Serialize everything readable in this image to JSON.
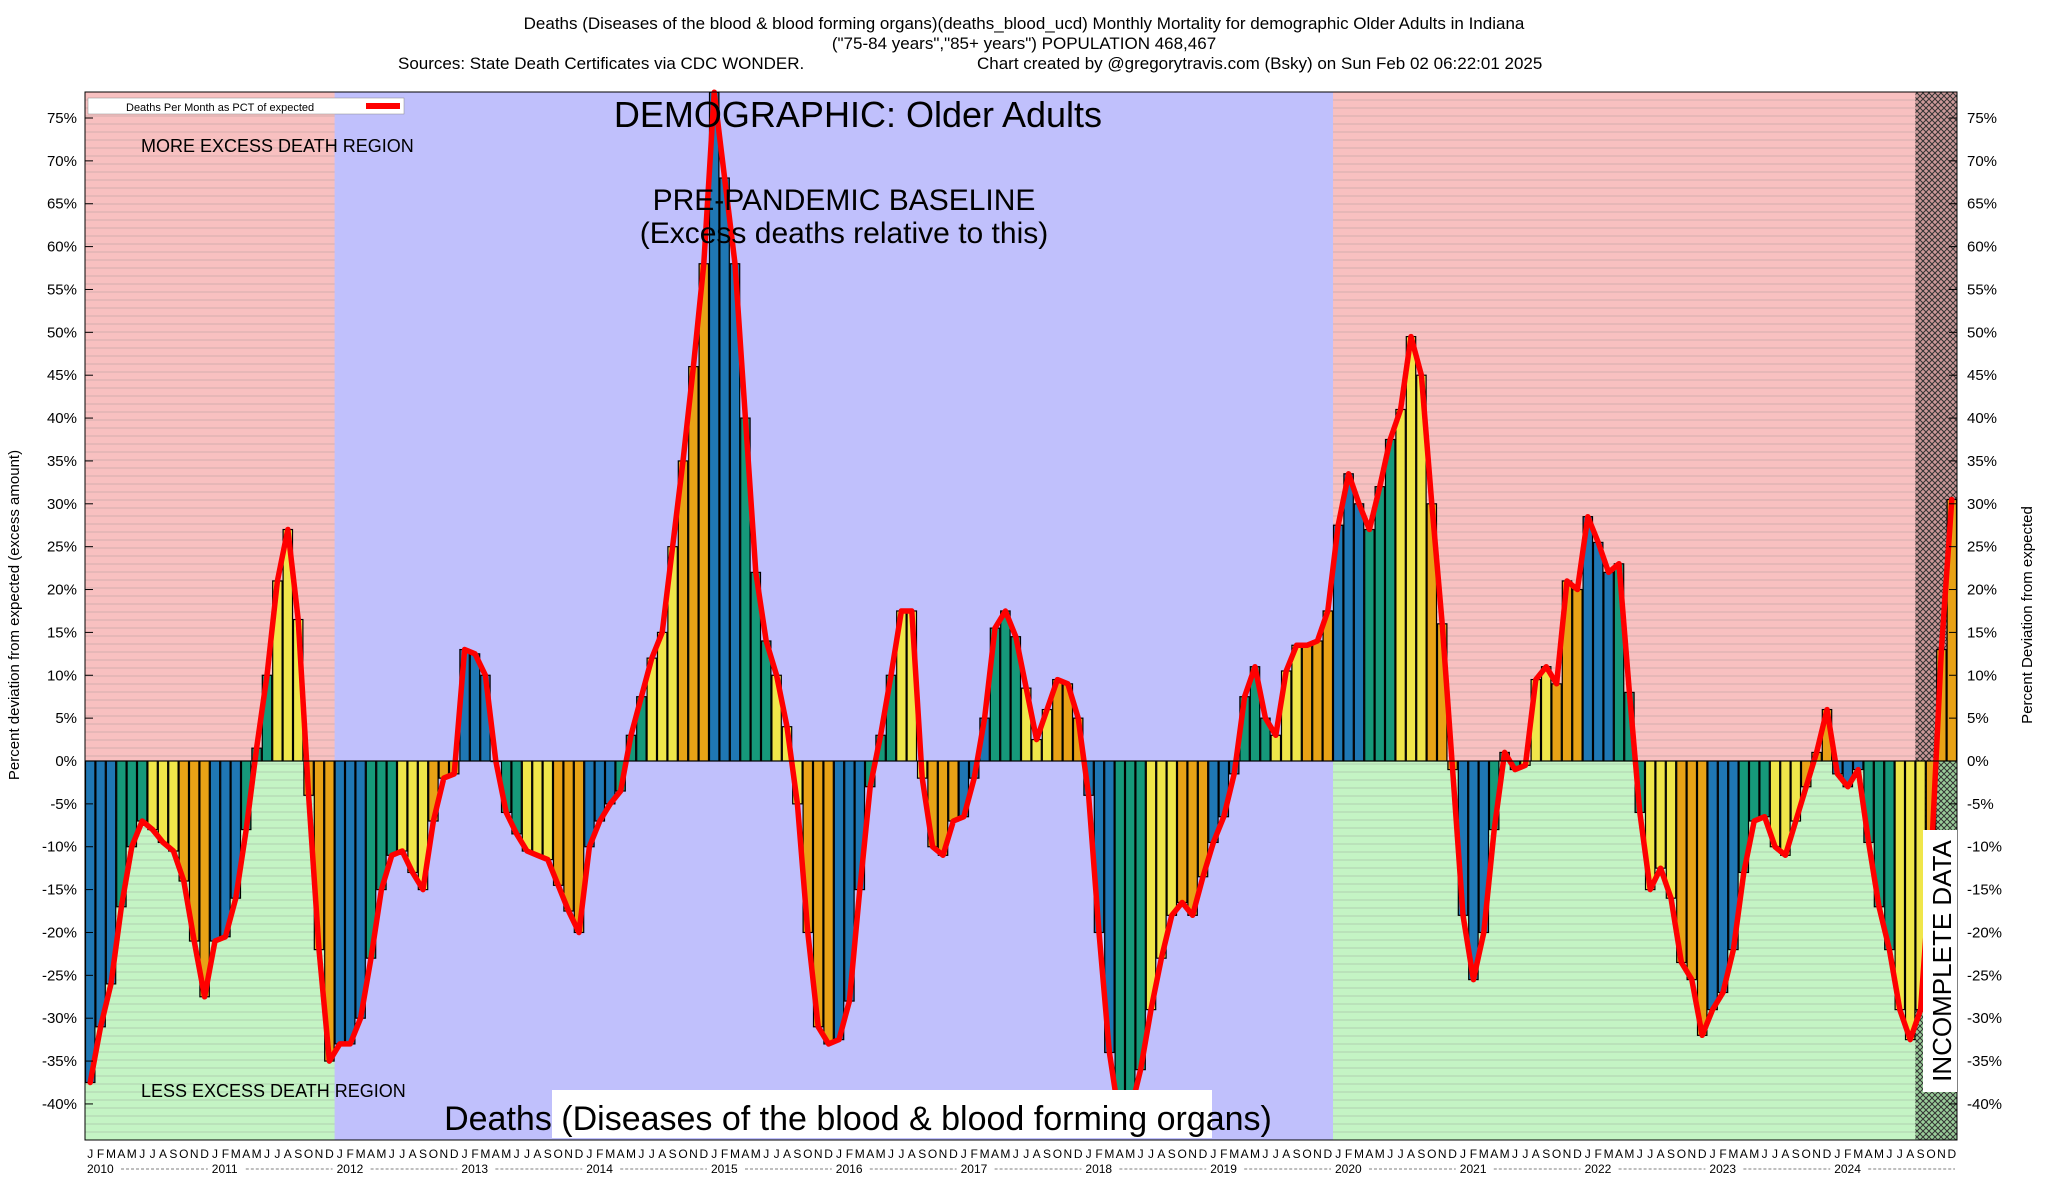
{
  "header": {
    "line1": "Deaths (Diseases of the blood & blood forming organs)(deaths_blood_ucd) Monthly Mortality for demographic Older Adults in Indiana",
    "line2": "(\"75-84 years\",\"85+ years\") POPULATION 468,467",
    "line3_left": "Sources: State Death Certificates via CDC WONDER.",
    "line3_right": "Chart created by @gregorytravis.com (Bsky) on Sun Feb 02 06:22:01 2025"
  },
  "chart_data": {
    "type": "bar",
    "title": "DEMOGRAPHIC: Older Adults",
    "subtitle_line1": "PRE-PANDEMIC BASELINE",
    "subtitle_line2": "(Excess deaths relative to this)",
    "bottom_label": "Deaths (Diseases of the blood & blood forming organs)",
    "ylabel_left": "Percent deviation from expected (excess amount)",
    "ylabel_right": "Percent Deviation from expected",
    "legend_label": "Deaths Per Month as PCT of expected",
    "region_upper_label": "MORE EXCESS DEATH REGION",
    "region_lower_label": "LESS EXCESS DEATH REGION",
    "incomplete_label": "INCOMPLETE DATA",
    "ylim": [
      -40,
      75
    ],
    "ytick_labels": [
      "75%",
      "70%",
      "65%",
      "60%",
      "55%",
      "50%",
      "45%",
      "40%",
      "35%",
      "30%",
      "25%",
      "20%",
      "15%",
      "10%",
      "5%",
      "0%",
      "-5%",
      "-10%",
      "-15%",
      "-20%",
      "-25%",
      "-30%",
      "-35%",
      "-40%"
    ],
    "month_letters": [
      "J",
      "F",
      "M",
      "A",
      "M",
      "J",
      "J",
      "A",
      "S",
      "O",
      "N",
      "D"
    ],
    "years": [
      "2010",
      "2011",
      "2012",
      "2013",
      "2014",
      "2015",
      "2016",
      "2017",
      "2018",
      "2019",
      "2020",
      "2021",
      "2022",
      "2023",
      "2024"
    ],
    "year_start": 2010,
    "baseline_start_year": 2012,
    "baseline_end_year": 2019,
    "incomplete_months": 4,
    "values": [
      -37.5,
      -31,
      -26,
      -17,
      -10,
      -7,
      -8,
      -9.5,
      -10.5,
      -14,
      -21,
      -27.5,
      -21,
      -20.5,
      -16,
      -8,
      1.5,
      10,
      21,
      27,
      16.5,
      -4,
      -22,
      -35,
      -33,
      -33,
      -30,
      -23,
      -15,
      -11,
      -10.5,
      -13,
      -15,
      -7,
      -2,
      -1.5,
      13,
      12.5,
      10,
      0,
      -6,
      -8.5,
      -10.5,
      -11,
      -11.5,
      -14.5,
      -17.5,
      -20,
      -10,
      -7,
      -5,
      -3.5,
      3,
      7.5,
      12,
      15,
      25,
      35,
      46,
      58,
      78,
      68,
      58,
      40,
      22,
      14,
      10,
      4,
      -5,
      -20,
      -31,
      -33,
      -32.5,
      -28,
      -15,
      -3,
      3,
      10,
      17.5,
      17.5,
      -2,
      -10,
      -11,
      -7,
      -6.5,
      -2,
      5,
      15.5,
      17.5,
      14.5,
      8.5,
      2.5,
      6,
      9.5,
      9,
      5,
      -4,
      -20,
      -34,
      -42,
      -41,
      -36,
      -29,
      -23,
      -18,
      -16.5,
      -18,
      -13.5,
      -9.5,
      -6.5,
      -1.5,
      7.5,
      11,
      5,
      3,
      10.5,
      13.5,
      13.5,
      14,
      17.5,
      27.5,
      33.5,
      30,
      27,
      32,
      37.5,
      41,
      49.5,
      45,
      30,
      16,
      -1,
      -18,
      -25.5,
      -20,
      -8,
      1,
      -1,
      -0.5,
      9.5,
      11,
      9,
      21,
      20,
      28.5,
      25.5,
      22,
      23,
      8,
      -6,
      -15,
      -12.5,
      -16,
      -23.5,
      -25.5,
      -32,
      -29,
      -27,
      -22,
      -13,
      -7,
      -6.5,
      -10,
      -11,
      -7,
      -3,
      1,
      6,
      -1.5,
      -3,
      -1,
      -9.5,
      -17,
      -22,
      -29,
      -32.5,
      -29,
      -12,
      13,
      30.5
    ]
  },
  "colors": {
    "upper_region": "#f8c0c0",
    "lower_region": "#c4f4c4",
    "baseline_region": "#c0c0fc",
    "line": "#ff0000",
    "bar_palette": [
      "#1f77b4",
      "#16997a",
      "#f0e64a",
      "#e8a216"
    ]
  }
}
